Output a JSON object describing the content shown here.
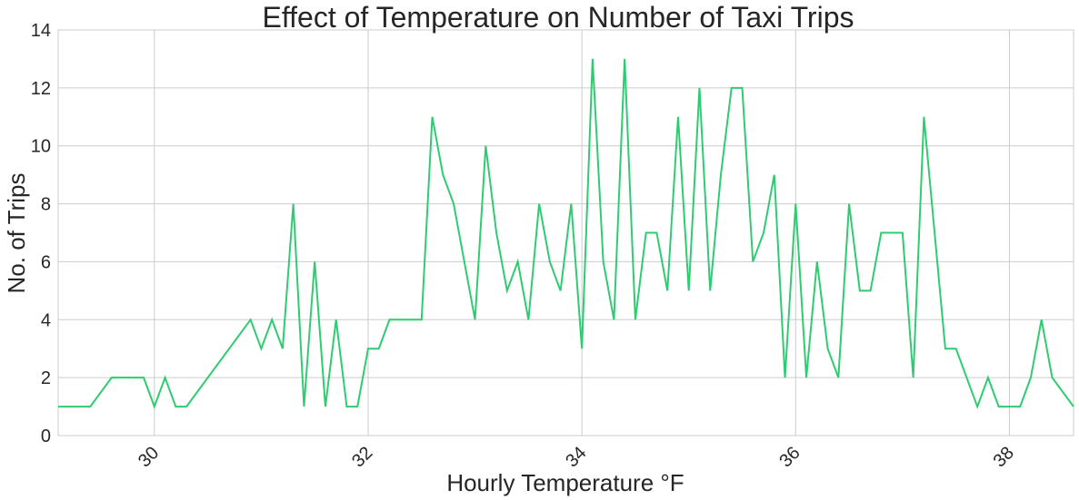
{
  "chart_data": {
    "type": "line",
    "title": "Effect of Temperature on Number of Taxi Trips",
    "xlabel": "Hourly Temperature °F",
    "ylabel": "No. of Trips",
    "xlim": [
      29.1,
      38.6
    ],
    "ylim": [
      0,
      14
    ],
    "xticks": [
      30,
      32,
      34,
      36,
      38
    ],
    "yticks": [
      0,
      2,
      4,
      6,
      8,
      10,
      12,
      14
    ],
    "grid": true,
    "line_color": "#2ecc71",
    "series": [
      {
        "x": [
          29.1,
          29.4,
          29.6,
          29.9,
          30.0,
          30.1,
          30.2,
          30.3,
          30.9,
          31.0,
          31.1,
          31.2,
          31.3,
          31.4,
          31.5,
          31.6,
          31.7,
          31.8,
          31.9,
          32.0,
          32.1,
          32.2,
          32.3,
          32.5,
          32.6,
          32.7,
          32.8,
          33.0,
          33.1,
          33.2,
          33.3,
          33.4,
          33.5,
          33.6,
          33.7,
          33.8,
          33.9,
          34.0,
          34.1,
          34.2,
          34.3,
          34.4,
          34.5,
          34.6,
          34.7,
          34.8,
          34.9,
          35.0,
          35.1,
          35.2,
          35.3,
          35.4,
          35.5,
          35.6,
          35.7,
          35.8,
          35.9,
          36.0,
          36.1,
          36.2,
          36.3,
          36.4,
          36.5,
          36.6,
          36.7,
          36.8,
          37.0,
          37.1,
          37.2,
          37.4,
          37.5,
          37.7,
          37.8,
          37.9,
          38.1,
          38.2,
          38.3,
          38.4,
          38.6
        ],
        "y": [
          1,
          1,
          2,
          2,
          1,
          2,
          1,
          1,
          4,
          3,
          4,
          3,
          8,
          1,
          6,
          1,
          4,
          1,
          1,
          3,
          3,
          4,
          4,
          4,
          11,
          9,
          8,
          4,
          10,
          7,
          5,
          6,
          4,
          8,
          6,
          5,
          8,
          3,
          13,
          6,
          4,
          13,
          4,
          7,
          7,
          5,
          11,
          5,
          12,
          5,
          9,
          12,
          12,
          6,
          7,
          9,
          2,
          8,
          2,
          6,
          3,
          2,
          8,
          5,
          5,
          7,
          7,
          2,
          11,
          3,
          3,
          1,
          2,
          1,
          1,
          2,
          4,
          2,
          1
        ]
      }
    ]
  }
}
